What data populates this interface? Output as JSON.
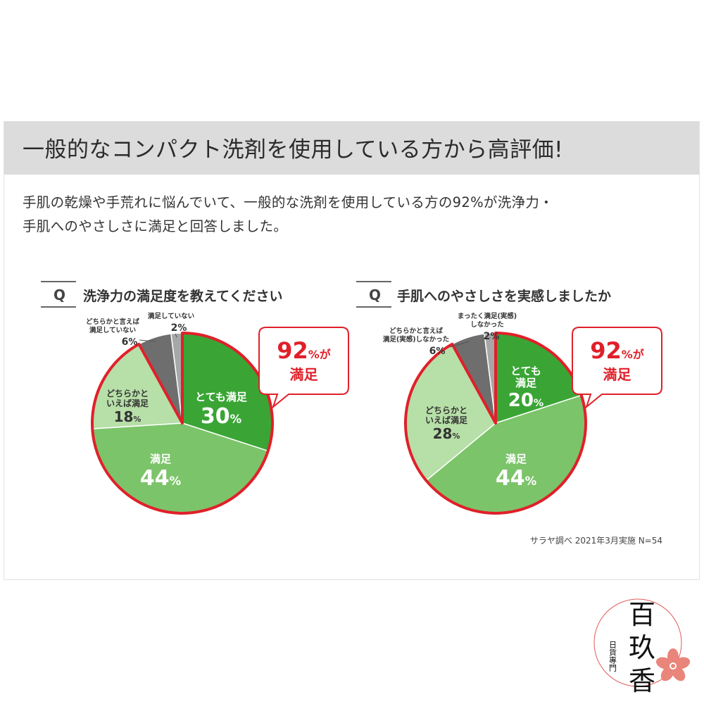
{
  "banner": {
    "title": "一般的なコンパクト洗剤を使用している方から高評価!"
  },
  "description": {
    "line1": "手肌の乾燥や手荒れに悩んでいて、一般的な洗剤を使用している方の92%が洗浄力・",
    "line2": "手肌へのやさしさに満足と回答しました。"
  },
  "source_note": "サラヤ調べ 2021年3月実施 N=54",
  "stamp": {
    "big1": "百",
    "big2": "玖",
    "big3": "香",
    "small": "日貨專門"
  },
  "colors": {
    "very_satisfied": "#3aa535",
    "satisfied": "#7cc46a",
    "somewhat_satisfied": "#b7dfa8",
    "somewhat_not": "#6e6e6e",
    "not_at_all": "#a7a7a7",
    "highlight_border": "#e0202a"
  },
  "chart_data": [
    {
      "type": "pie",
      "question_mark": "Q",
      "title": "洗浄力の満足度を教えてください",
      "callout": {
        "value": "92",
        "unit": "%が",
        "label": "満足"
      },
      "slices": [
        {
          "label": "とても満足",
          "value": 30,
          "unit": "%",
          "color": "#3aa535"
        },
        {
          "label": "満足",
          "value": 44,
          "unit": "%",
          "color": "#7cc46a"
        },
        {
          "label": "どちらかと\nいえば満足",
          "value": 18,
          "unit": "%",
          "color": "#b7dfa8"
        },
        {
          "label": "どちらかと言えば\n満足していない",
          "value": 6,
          "unit": "%",
          "color": "#6e6e6e"
        },
        {
          "label": "満足していない",
          "value": 2,
          "unit": "%",
          "color": "#a7a7a7"
        }
      ]
    },
    {
      "type": "pie",
      "question_mark": "Q",
      "title": "手肌へのやさしさを実感しましたか",
      "callout": {
        "value": "92",
        "unit": "%が",
        "label": "満足"
      },
      "slices": [
        {
          "label": "とても\n満足",
          "value": 20,
          "unit": "%",
          "color": "#3aa535"
        },
        {
          "label": "満足",
          "value": 44,
          "unit": "%",
          "color": "#7cc46a"
        },
        {
          "label": "どちらかと\nいえば満足",
          "value": 28,
          "unit": "%",
          "color": "#b7dfa8"
        },
        {
          "label": "どちらかと言えば\n満足(実感)しなかった",
          "value": 6,
          "unit": "%",
          "color": "#6e6e6e"
        },
        {
          "label": "まったく満足(実感)\nしなかった",
          "value": 2,
          "unit": "%",
          "color": "#a7a7a7"
        }
      ]
    }
  ]
}
